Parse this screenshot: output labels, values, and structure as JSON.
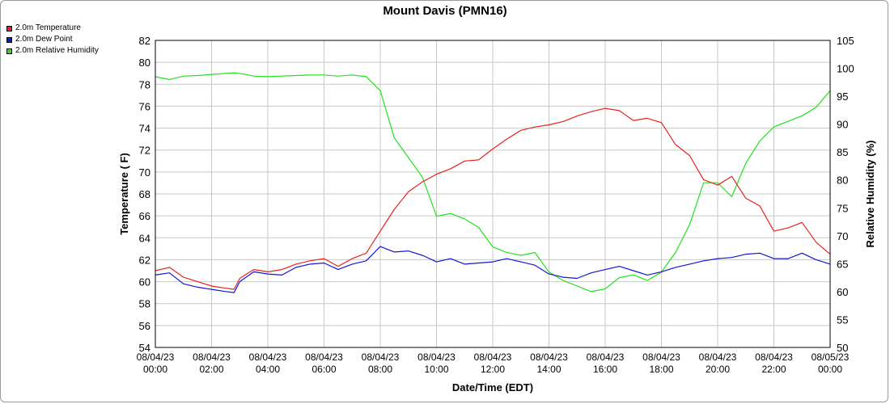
{
  "chart_data": {
    "type": "line",
    "title": "Mount Davis (PMN16)",
    "xlabel": "Date/Time (EDT)",
    "ylabel_left": "Temperature ( F)",
    "ylabel_right": "Relative Humidity (%)",
    "ylim_left": [
      54,
      82
    ],
    "ylim_right": [
      50,
      105
    ],
    "y_ticks_left": [
      "54",
      "56",
      "58",
      "60",
      "62",
      "64",
      "66",
      "68",
      "70",
      "72",
      "74",
      "76",
      "78",
      "80",
      "82"
    ],
    "y_ticks_right": [
      "50",
      "55",
      "60",
      "65",
      "70",
      "75",
      "80",
      "85",
      "90",
      "95",
      "100",
      "105"
    ],
    "x_ticks": [
      {
        "date": "08/04/23",
        "time": "00:00"
      },
      {
        "date": "08/04/23",
        "time": "02:00"
      },
      {
        "date": "08/04/23",
        "time": "04:00"
      },
      {
        "date": "08/04/23",
        "time": "06:00"
      },
      {
        "date": "08/04/23",
        "time": "08:00"
      },
      {
        "date": "08/04/23",
        "time": "10:00"
      },
      {
        "date": "08/04/23",
        "time": "12:00"
      },
      {
        "date": "08/04/23",
        "time": "14:00"
      },
      {
        "date": "08/04/23",
        "time": "16:00"
      },
      {
        "date": "08/04/23",
        "time": "18:00"
      },
      {
        "date": "08/04/23",
        "time": "20:00"
      },
      {
        "date": "08/04/23",
        "time": "22:00"
      },
      {
        "date": "08/05/23",
        "time": "00:00"
      }
    ],
    "grid": true,
    "legend_position": "top-left",
    "series": [
      {
        "name": "2.0m Temperature",
        "axis": "left",
        "color": "#e8231f",
        "x_hours": [
          0,
          0.5,
          1,
          1.5,
          2,
          2.5,
          2.8,
          3,
          3.5,
          4,
          4.5,
          5,
          5.5,
          6,
          6.5,
          7,
          7.5,
          8,
          8.5,
          9,
          9.5,
          10,
          10.5,
          11,
          11.5,
          12,
          12.5,
          13,
          13.5,
          14,
          14.5,
          15,
          15.5,
          16,
          16.5,
          17,
          17.5,
          18,
          18.5,
          19,
          19.5,
          20,
          20.5,
          21,
          21.5,
          22,
          22.5,
          23,
          23.5,
          24
        ],
        "values": [
          61.0,
          61.3,
          60.4,
          60.0,
          59.6,
          59.4,
          59.3,
          60.3,
          61.1,
          60.9,
          61.1,
          61.6,
          61.9,
          62.1,
          61.4,
          62.1,
          62.6,
          64.6,
          66.6,
          68.2,
          69.1,
          69.8,
          70.3,
          71.0,
          71.1,
          72.1,
          73.0,
          73.8,
          74.1,
          74.3,
          74.6,
          75.1,
          75.5,
          75.8,
          75.6,
          74.7,
          74.9,
          74.5,
          72.5,
          71.5,
          69.3,
          68.8,
          69.6,
          67.6,
          66.9,
          64.6,
          64.9,
          65.4,
          63.6,
          62.5
        ]
      },
      {
        "name": "2.0m Dew Point",
        "axis": "left",
        "color": "#1515d6",
        "x_hours": [
          0,
          0.5,
          1,
          1.5,
          2,
          2.5,
          2.8,
          3,
          3.5,
          4,
          4.5,
          5,
          5.5,
          6,
          6.5,
          7,
          7.5,
          8,
          8.5,
          9,
          9.5,
          10,
          10.5,
          11,
          11.5,
          12,
          12.5,
          13,
          13.5,
          14,
          14.5,
          15,
          15.5,
          16,
          16.5,
          17,
          17.5,
          18,
          18.5,
          19,
          19.5,
          20,
          20.5,
          21,
          21.5,
          22,
          22.5,
          23,
          23.5,
          24
        ],
        "values": [
          60.6,
          60.8,
          59.8,
          59.5,
          59.3,
          59.1,
          59.0,
          60.0,
          60.9,
          60.7,
          60.6,
          61.3,
          61.6,
          61.7,
          61.1,
          61.6,
          61.9,
          63.2,
          62.7,
          62.8,
          62.4,
          61.8,
          62.1,
          61.6,
          61.7,
          61.8,
          62.1,
          61.8,
          61.5,
          60.7,
          60.4,
          60.3,
          60.8,
          61.1,
          61.4,
          61.0,
          60.6,
          60.9,
          61.3,
          61.6,
          61.9,
          62.1,
          62.2,
          62.5,
          62.6,
          62.1,
          62.1,
          62.6,
          62.0,
          61.6
        ]
      },
      {
        "name": "2.0m Relative Humidity",
        "axis": "right",
        "color": "#22e21e",
        "x_hours": [
          0,
          0.5,
          1,
          1.5,
          2,
          2.5,
          2.8,
          3,
          3.5,
          4,
          4.5,
          5,
          5.5,
          6,
          6.5,
          7,
          7.5,
          8,
          8.5,
          9,
          9.5,
          10,
          10.5,
          11,
          11.5,
          12,
          12.5,
          13,
          13.5,
          14,
          14.5,
          15,
          15.5,
          16,
          16.5,
          17,
          17.5,
          18,
          18.5,
          19,
          19.5,
          20,
          20.5,
          21,
          21.5,
          22,
          22.5,
          23,
          23.5,
          24
        ],
        "values": [
          98.5,
          98.0,
          98.6,
          98.7,
          98.9,
          99.1,
          99.2,
          99.1,
          98.6,
          98.5,
          98.6,
          98.7,
          98.8,
          98.8,
          98.6,
          98.8,
          98.5,
          96.0,
          87.5,
          84.0,
          80.5,
          73.5,
          74.0,
          73.0,
          71.5,
          68.0,
          67.0,
          66.5,
          67.0,
          63.5,
          62.0,
          61.0,
          60.0,
          60.5,
          62.5,
          63.0,
          62.0,
          63.5,
          67.0,
          72.0,
          79.5,
          79.5,
          77.0,
          83.0,
          87.0,
          89.5,
          90.5,
          91.5,
          93.0,
          96.0
        ]
      }
    ]
  }
}
